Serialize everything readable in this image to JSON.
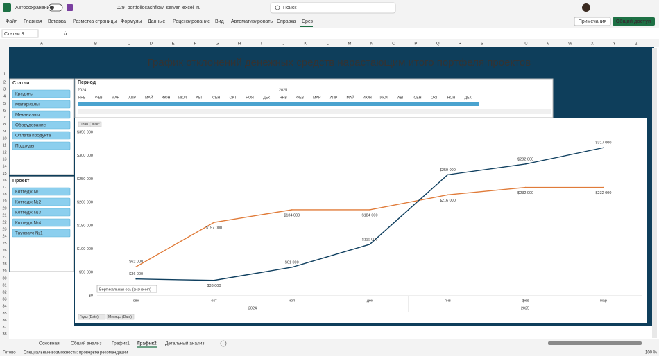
{
  "app": {
    "autosave": "Автосохранение",
    "filename": "029_portfoliocashflow_server_excel_ru",
    "search": "Поиск",
    "menu": [
      "Файл",
      "Главная",
      "Вставка",
      "Разметка страницы",
      "Формулы",
      "Данные",
      "Рецензирование",
      "Вид",
      "Автоматизировать",
      "Справка",
      "Срез"
    ],
    "comments": "Примечания",
    "share": "Общий доступ",
    "name_box": "Статьи 3",
    "columns": [
      "A",
      "B",
      "C",
      "D",
      "E",
      "F",
      "G",
      "H",
      "I",
      "J",
      "K",
      "L",
      "M",
      "N",
      "O",
      "P",
      "Q",
      "R",
      "S",
      "T",
      "U",
      "V",
      "W",
      "X",
      "Y",
      "Z"
    ],
    "rows": [
      1,
      2,
      3,
      4,
      5,
      6,
      7,
      8,
      9,
      10,
      11,
      12,
      13,
      14,
      15,
      16,
      17,
      18,
      19,
      20,
      21,
      22,
      23,
      24,
      25,
      26,
      27,
      28,
      29,
      30,
      31,
      32,
      33,
      34,
      35,
      36,
      37,
      38
    ],
    "sheets": [
      "Основная",
      "Общий анализ",
      "График1",
      "График2",
      "Детальный анализ"
    ],
    "status": "Готово",
    "accessibility": "Специальные возможности: проверьте рекомендации",
    "zoom": "100 %"
  },
  "dashboard": {
    "title": "График отклонений денежных средств нарастающим итого портфеля проектов",
    "slicers": [
      {
        "title": "Статьи",
        "items": [
          "Кредиты",
          "Материалы",
          "Механизмы",
          "Оборудование",
          "Оплата продукта",
          "Подряды"
        ]
      },
      {
        "title": "Проект",
        "items": [
          "Коттедж №1",
          "Коттедж №2",
          "Коттедж №3",
          "Коттедж №4",
          "Таунхаус №1"
        ]
      }
    ],
    "timeline": {
      "title": "Период",
      "years": [
        "2024",
        "2025"
      ],
      "months": [
        "ЯНВ",
        "ФЕВ",
        "МАР",
        "АПР",
        "МАЙ",
        "ИЮН",
        "ИЮЛ",
        "АВГ",
        "СЕН",
        "ОКТ",
        "НОЯ",
        "ДЕК",
        "ЯНВ",
        "ФЕВ",
        "МАР",
        "АПР",
        "МАЙ",
        "ИЮН",
        "ИЮЛ",
        "АВГ",
        "СЕН",
        "ОКТ",
        "НОЯ",
        "ДЕК"
      ]
    }
  },
  "chart_data": {
    "type": "line",
    "categories": [
      "сен",
      "окт",
      "ноя",
      "дек",
      "янв",
      "фев",
      "мар"
    ],
    "years": [
      "2024",
      "2025"
    ],
    "series": [
      {
        "name": "План",
        "color": "#e07b39",
        "values": [
          62000,
          157000,
          184000,
          184000,
          216000,
          232000,
          232000
        ],
        "value_labels": [
          "$62 000",
          "$157 000",
          "$184 000",
          "$184 000",
          "$216 000",
          "$232 000",
          "$232 000"
        ]
      },
      {
        "name": "Факт",
        "color": "#0f3f5f",
        "values": [
          36000,
          33000,
          61000,
          110000,
          259000,
          282000,
          317000
        ],
        "value_labels": [
          "$36 000",
          "$33 000",
          "$61 000",
          "$110 000",
          "$259 000",
          "$282 000",
          "$317 000"
        ]
      }
    ],
    "ylim": [
      0,
      350000
    ],
    "yticks": [
      {
        "value": 0,
        "label": "$0"
      },
      {
        "value": 50000,
        "label": "$50 000"
      },
      {
        "value": 100000,
        "label": "$100 000"
      },
      {
        "value": 150000,
        "label": "$150 000"
      },
      {
        "value": 200000,
        "label": "$200 000"
      },
      {
        "value": 250000,
        "label": "$250 000"
      },
      {
        "value": 300000,
        "label": "$300 000"
      },
      {
        "value": 350000,
        "label": "$350 000"
      }
    ],
    "grid": false,
    "axis_tooltip": "Вертикальная ось (значения)",
    "axis_buttons": [
      "Годы (Date)",
      "Месяцы (Date)"
    ]
  }
}
